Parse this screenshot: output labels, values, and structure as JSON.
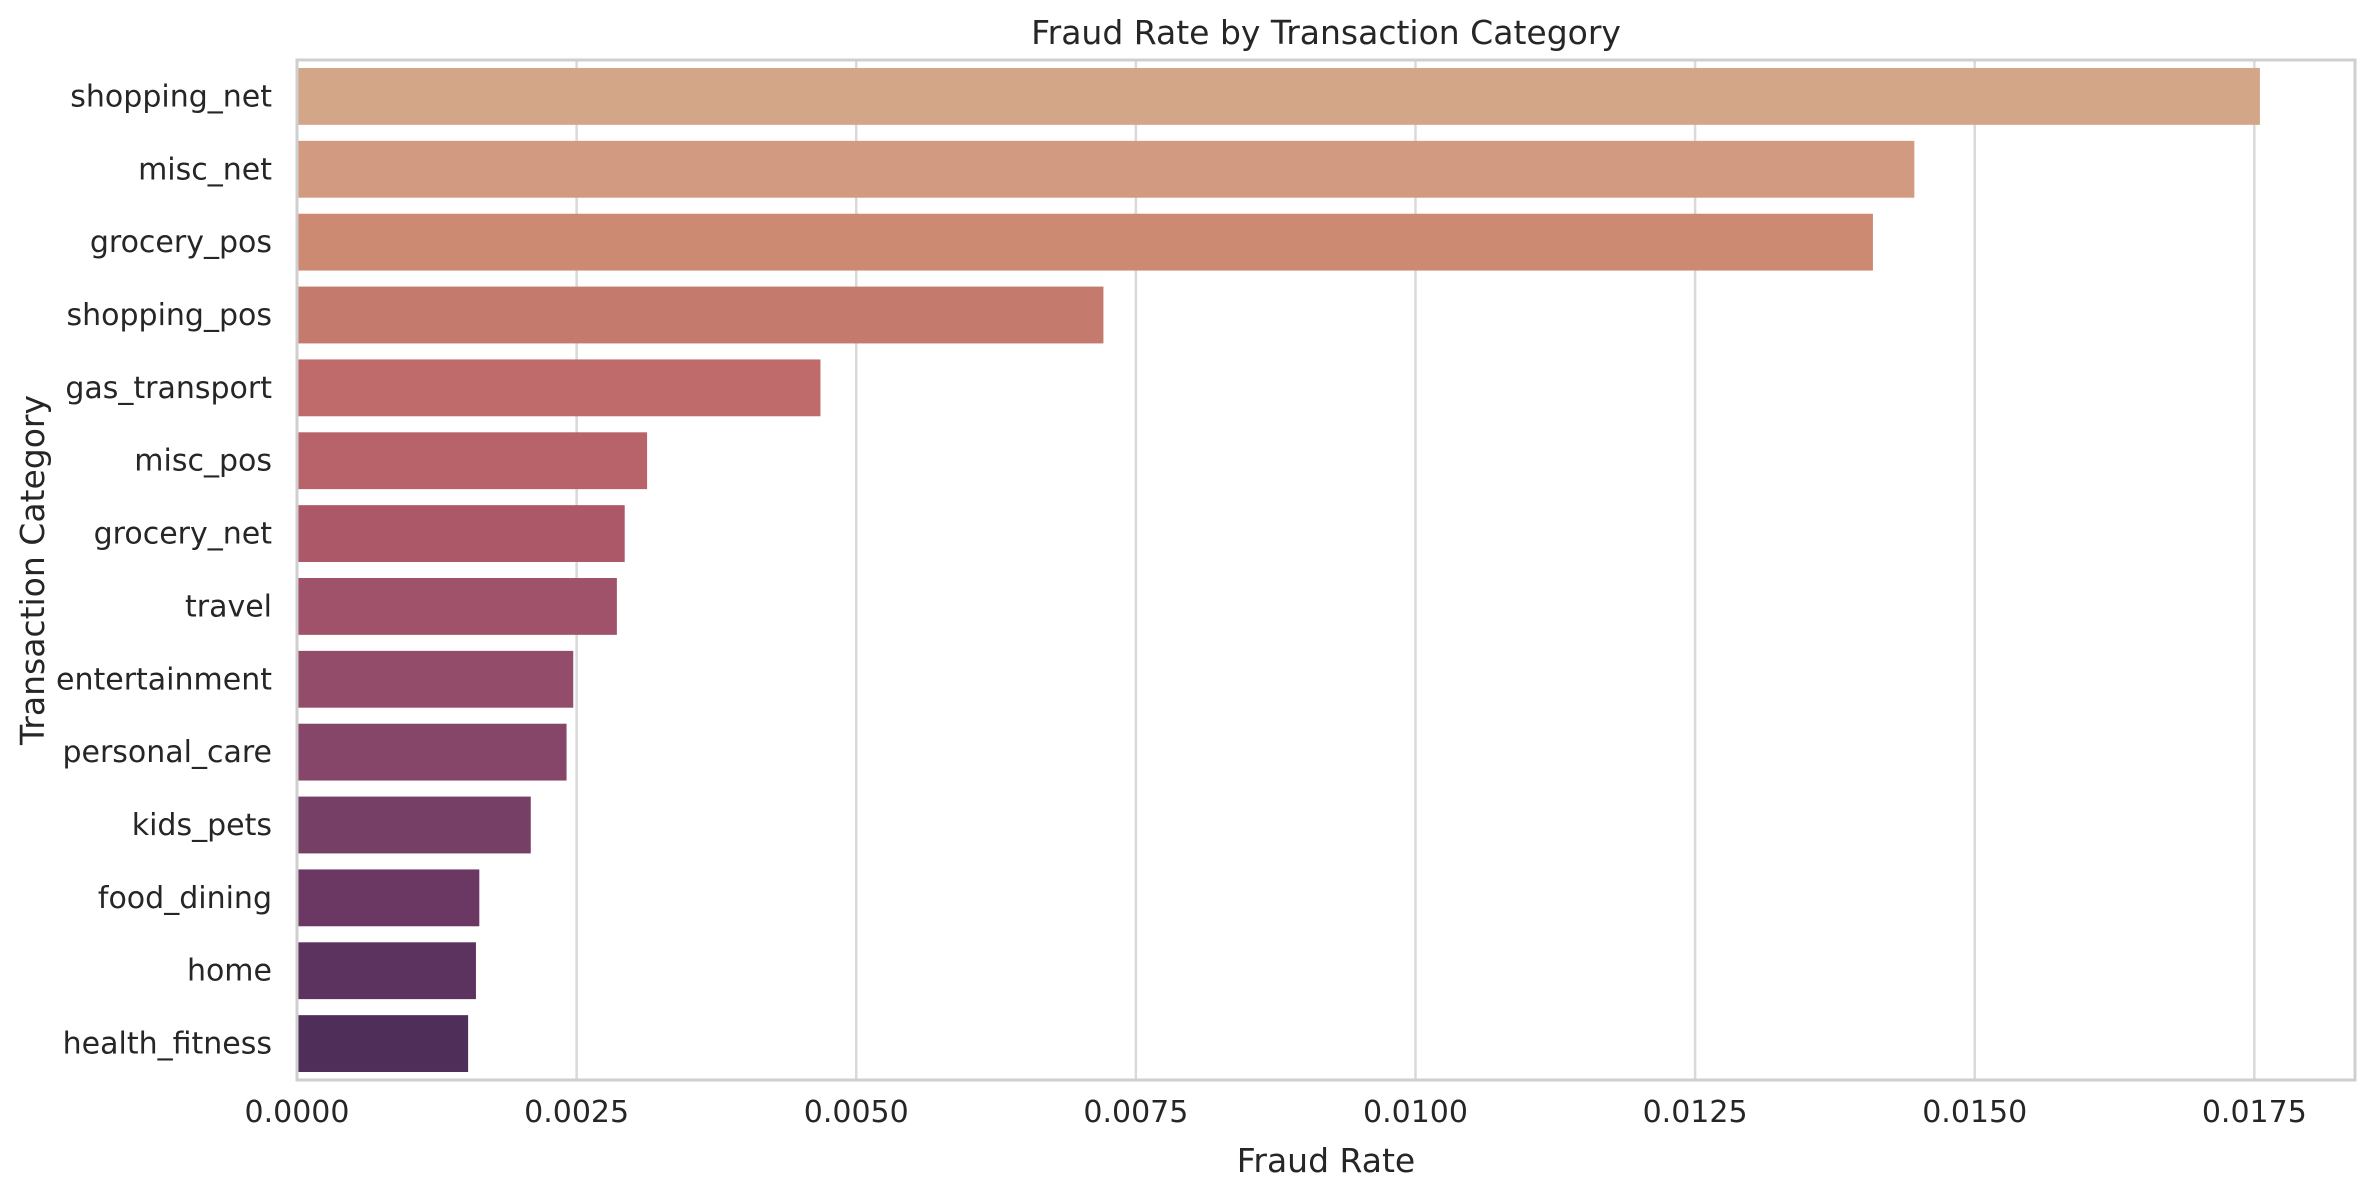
{
  "chart_data": {
    "type": "bar",
    "orientation": "horizontal",
    "title": "Fraud Rate by Transaction Category",
    "xlabel": "Fraud Rate",
    "ylabel": "Transaction Category",
    "xlim": [
      0,
      0.0184
    ],
    "xticks": [
      "0.0000",
      "0.0025",
      "0.0050",
      "0.0075",
      "0.0100",
      "0.0125",
      "0.0150",
      "0.0175"
    ],
    "grid": "vertical",
    "legend": "none",
    "categories": [
      "shopping_net",
      "misc_net",
      "grocery_pos",
      "shopping_pos",
      "gas_transport",
      "misc_pos",
      "grocery_net",
      "travel",
      "entertainment",
      "personal_care",
      "kids_pets",
      "food_dining",
      "home",
      "health_fitness"
    ],
    "values": [
      0.01755,
      0.01446,
      0.01409,
      0.00721,
      0.00468,
      0.00313,
      0.00293,
      0.00286,
      0.00247,
      0.00241,
      0.00209,
      0.00163,
      0.0016,
      0.00153
    ],
    "colors": [
      "#d4a688",
      "#d19a81",
      "#cc8a72",
      "#c47b6e",
      "#c06b6b",
      "#b8626a",
      "#ad5869",
      "#a1526b",
      "#944c6b",
      "#85466a",
      "#763f66",
      "#6a3863",
      "#5c325f",
      "#4f2e5a"
    ]
  }
}
